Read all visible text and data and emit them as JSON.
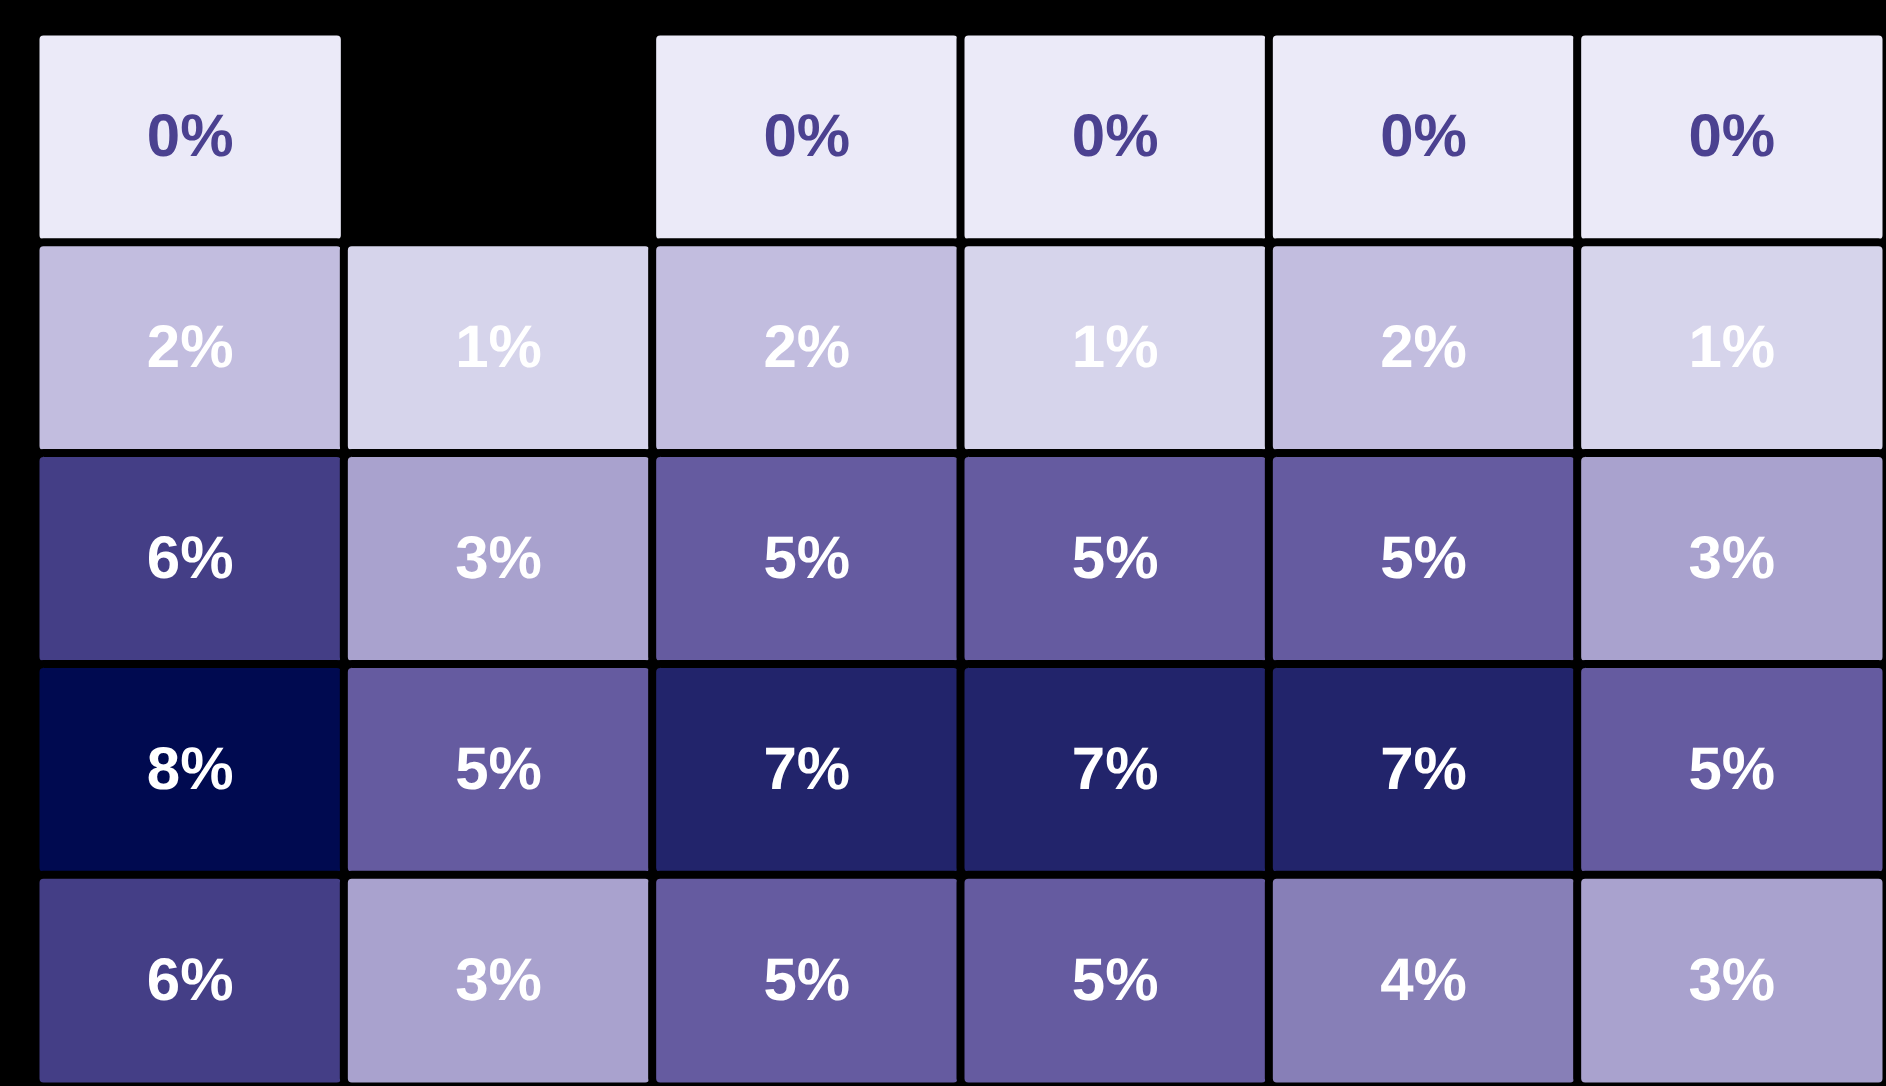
{
  "chart_data": {
    "type": "heatmap",
    "categories": [
      null,
      null,
      null,
      null,
      null,
      null
    ],
    "y_categories": [
      null,
      null,
      null,
      null,
      null
    ],
    "cells": [
      [
        0,
        null,
        0,
        0,
        0,
        0
      ],
      [
        2,
        1,
        2,
        1,
        2,
        1
      ],
      [
        6,
        3,
        5,
        5,
        5,
        3
      ],
      [
        8,
        5,
        7,
        7,
        7,
        5
      ],
      [
        6,
        3,
        5,
        5,
        4,
        3
      ]
    ],
    "cell_labels": [
      [
        "0%",
        null,
        "0%",
        "0%",
        "0%",
        "0%"
      ],
      [
        "2%",
        "1%",
        "2%",
        "1%",
        "2%",
        "1%"
      ],
      [
        "6%",
        "3%",
        "5%",
        "5%",
        "5%",
        "3%"
      ],
      [
        "8%",
        "5%",
        "7%",
        "7%",
        "7%",
        "5%"
      ],
      [
        "6%",
        "3%",
        "5%",
        "5%",
        "4%",
        "3%"
      ]
    ],
    "tick_labels": false
  }
}
